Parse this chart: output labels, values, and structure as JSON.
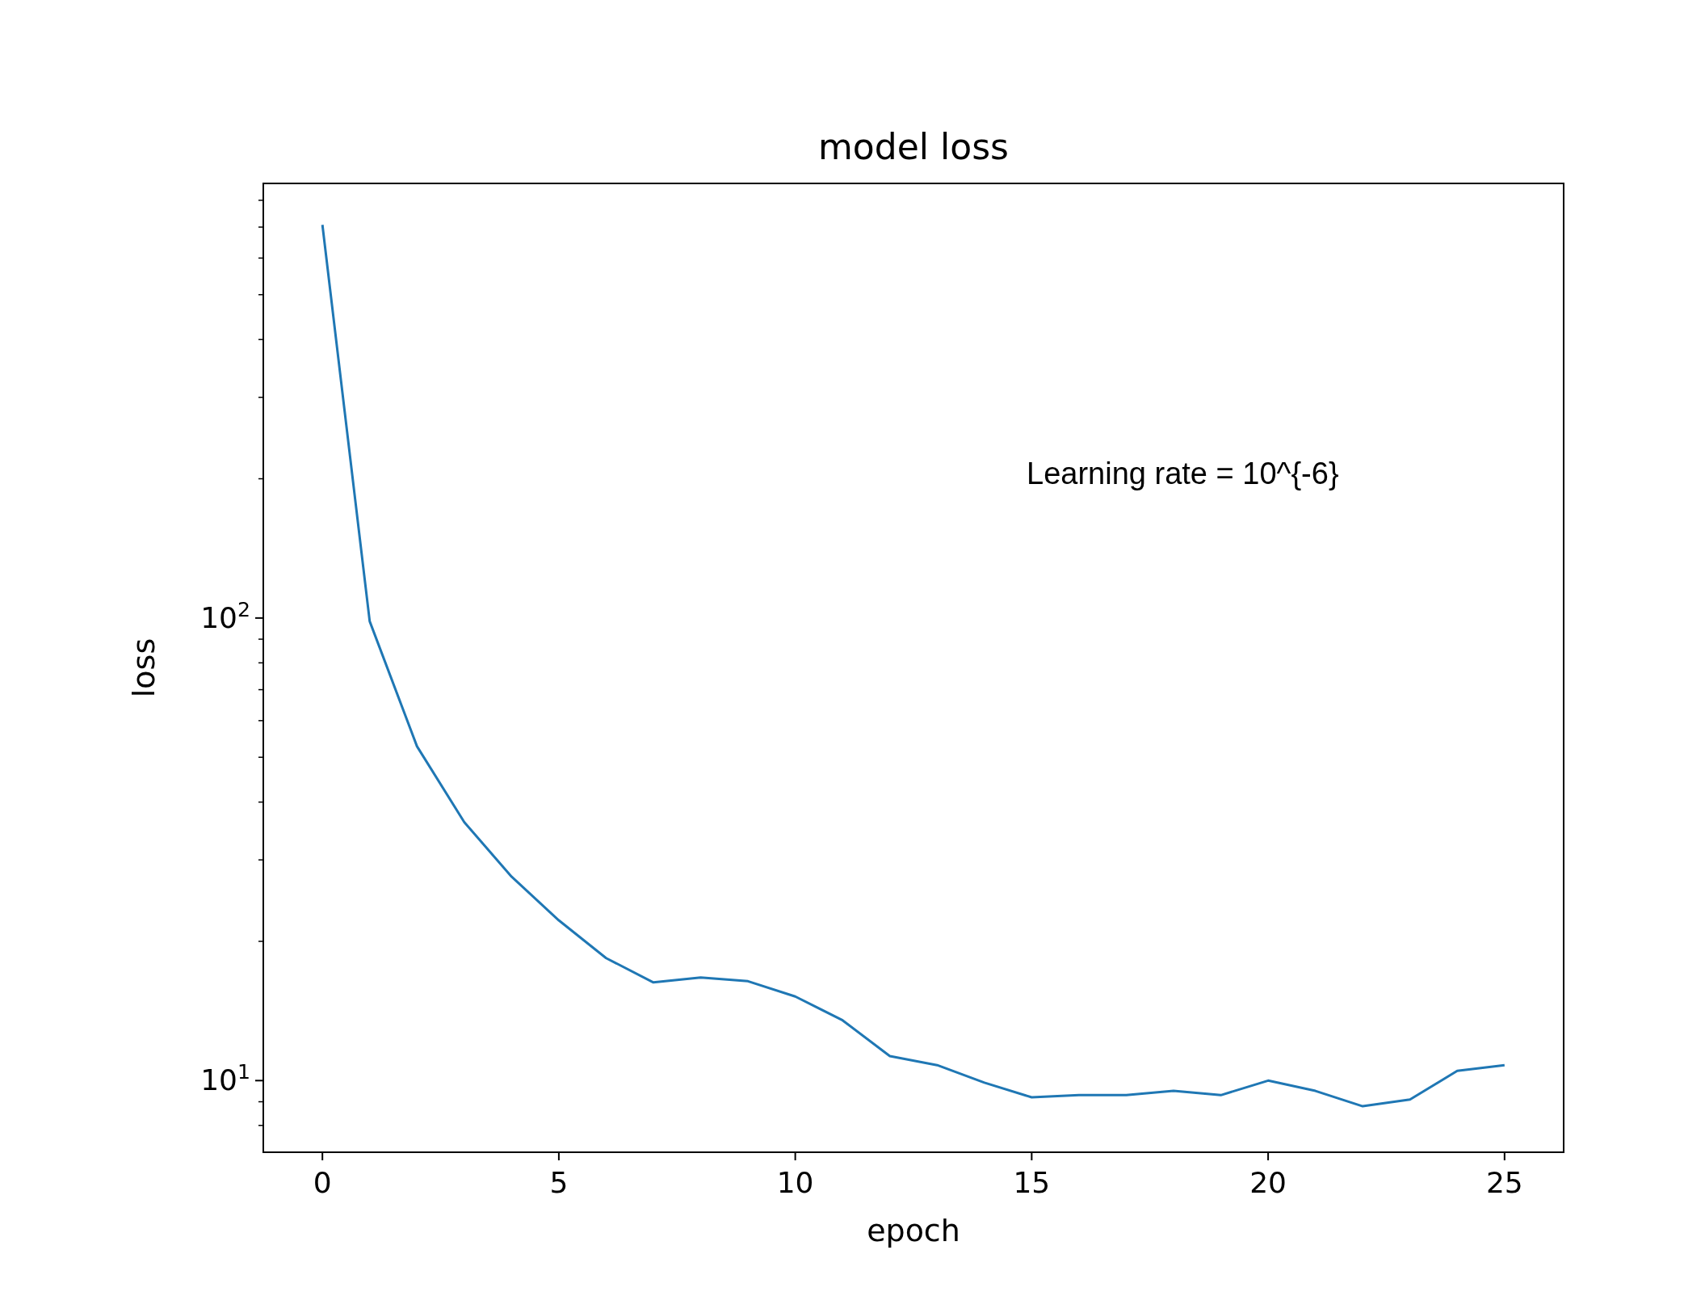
{
  "chart_data": {
    "type": "line",
    "title": "model loss",
    "xlabel": "epoch",
    "ylabel": "loss",
    "log": "y",
    "x": [
      0,
      1,
      2,
      3,
      4,
      5,
      6,
      7,
      8,
      9,
      10,
      11,
      12,
      13,
      14,
      15,
      16,
      17,
      18,
      19,
      20,
      21,
      22,
      23,
      24,
      25
    ],
    "series": [
      {
        "color": "#1f77b4",
        "values": [
          708,
          98.4,
          52.8,
          36.2,
          27.6,
          22.2,
          18.4,
          16.3,
          16.7,
          16.4,
          15.2,
          13.5,
          11.3,
          10.8,
          9.9,
          9.2,
          9.3,
          9.3,
          9.5,
          9.3,
          10.0,
          9.5,
          8.8,
          9.1,
          10.5,
          10.8
        ]
      }
    ],
    "xlim": [
      -1.25,
      26.25
    ],
    "xticks": [
      0,
      5,
      10,
      15,
      20,
      25
    ],
    "ylim": [
      7,
      870
    ],
    "yticks": [
      {
        "value": 8,
        "label": null
      },
      {
        "value": 9,
        "label": null
      },
      {
        "value": 10,
        "label": "10$^{1}$"
      },
      {
        "value": 20,
        "label": null
      },
      {
        "value": 30,
        "label": null
      },
      {
        "value": 40,
        "label": null
      },
      {
        "value": 50,
        "label": null
      },
      {
        "value": 60,
        "label": null
      },
      {
        "value": 70,
        "label": null
      },
      {
        "value": 80,
        "label": null
      },
      {
        "value": 90,
        "label": null
      },
      {
        "value": 100,
        "label": "10$^{2}$"
      },
      {
        "value": 200,
        "label": null
      },
      {
        "value": 300,
        "label": null
      },
      {
        "value": 400,
        "label": null
      },
      {
        "value": 500,
        "label": null
      },
      {
        "value": 600,
        "label": null
      },
      {
        "value": 700,
        "label": null
      },
      {
        "value": 800,
        "label": null
      }
    ],
    "annotations": [
      "Learning rate = 10^{-6}"
    ],
    "marker": "none",
    "line_style": "solid"
  }
}
